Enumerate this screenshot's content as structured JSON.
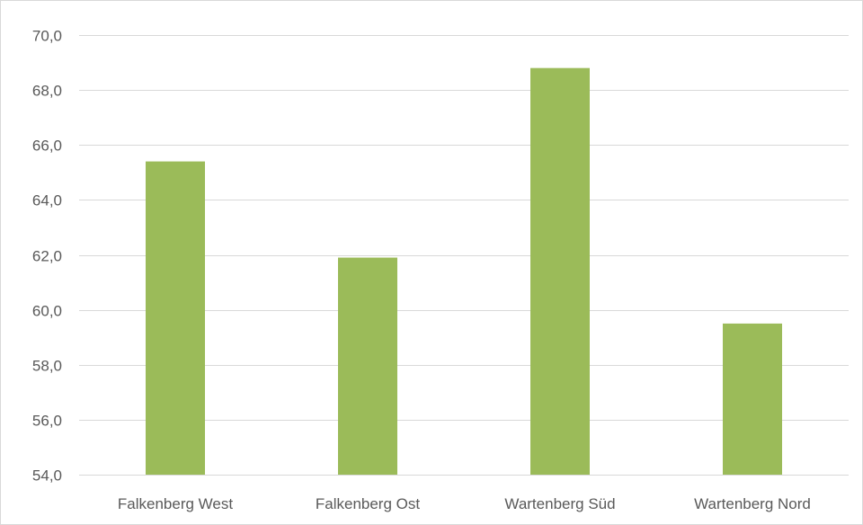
{
  "chart_data": {
    "type": "bar",
    "categories": [
      "Falkenberg West",
      "Falkenberg Ost",
      "Wartenberg Süd",
      "Wartenberg Nord"
    ],
    "values": [
      65.4,
      61.9,
      68.8,
      59.5
    ],
    "ylim": [
      54.0,
      70.0
    ],
    "yticks": [
      "54,0",
      "56,0",
      "58,0",
      "60,0",
      "62,0",
      "64,0",
      "66,0",
      "68,0",
      "70,0"
    ],
    "ytick_values": [
      54,
      56,
      58,
      60,
      62,
      64,
      66,
      68,
      70
    ],
    "title": "",
    "xlabel": "",
    "ylabel": "",
    "grid": true,
    "legend": "none",
    "colors": {
      "bar": "#9bbb59",
      "grid": "#d9d9d9",
      "text": "#595959"
    }
  }
}
